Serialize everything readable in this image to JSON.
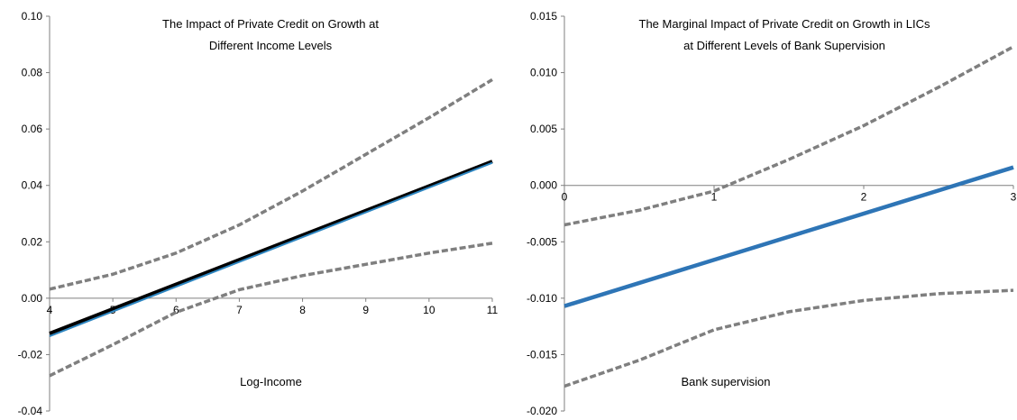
{
  "chart_data": [
    {
      "type": "line",
      "title_lines": [
        "The Impact of Private Credit on Growth at",
        "Different Income Levels"
      ],
      "xlabel": "Log-Income",
      "ylabel": "",
      "xlim": [
        4,
        11
      ],
      "ylim": [
        -0.04,
        0.1
      ],
      "x_ticks": [
        "4",
        "5",
        "6",
        "7",
        "8",
        "9",
        "10",
        "11"
      ],
      "y_ticks": [
        "0.10",
        "0.08",
        "0.06",
        "0.04",
        "0.02",
        "0.00",
        "-0.02",
        "-0.04"
      ],
      "grid": false,
      "series": [
        {
          "role": "upper-bound",
          "style": "dashed",
          "color": "#7f7f7f",
          "x": [
            4,
            5,
            6,
            7,
            8,
            9,
            10,
            11
          ],
          "y": [
            0.0032,
            0.0085,
            0.016,
            0.026,
            0.038,
            0.051,
            0.064,
            0.0775
          ]
        },
        {
          "role": "estimate-black",
          "style": "solid",
          "color": "#000000",
          "x": [
            4,
            11
          ],
          "y": [
            -0.0125,
            0.0485
          ]
        },
        {
          "role": "estimate-blue",
          "style": "solid",
          "color": "#2e86c1",
          "x": [
            4,
            11
          ],
          "y": [
            -0.0135,
            0.048
          ]
        },
        {
          "role": "lower-bound",
          "style": "dashed",
          "color": "#7f7f7f",
          "x": [
            4,
            5,
            6,
            7,
            8,
            9,
            10,
            11
          ],
          "y": [
            -0.0275,
            -0.0165,
            -0.005,
            0.003,
            0.008,
            0.012,
            0.016,
            0.0195
          ]
        }
      ]
    },
    {
      "type": "line",
      "title_lines": [
        "The Marginal Impact of Private Credit on Growth in LICs",
        "at Different Levels  of Bank Supervision"
      ],
      "xlabel": "Bank supervision",
      "ylabel": "",
      "xlim": [
        0,
        3
      ],
      "ylim": [
        -0.02,
        0.015
      ],
      "x_ticks": [
        "0",
        "1",
        "2",
        "3"
      ],
      "y_ticks": [
        "0.015",
        "0.010",
        "0.005",
        "0.000",
        "-0.005",
        "-0.010",
        "-0.015",
        "-0.020"
      ],
      "grid": false,
      "series": [
        {
          "role": "upper-bound",
          "style": "dashed",
          "color": "#7f7f7f",
          "x": [
            0,
            0.5,
            1,
            1.5,
            2,
            2.5,
            3
          ],
          "y": [
            -0.0035,
            -0.0022,
            -0.0005,
            0.0023,
            0.0053,
            0.0087,
            0.0123
          ]
        },
        {
          "role": "estimate",
          "style": "solid",
          "color": "#2e75b6",
          "x": [
            0,
            3
          ],
          "y": [
            -0.0107,
            0.0016
          ]
        },
        {
          "role": "lower-bound",
          "style": "dashed",
          "color": "#7f7f7f",
          "x": [
            0,
            0.5,
            1,
            1.5,
            2,
            2.5,
            3
          ],
          "y": [
            -0.0178,
            -0.0155,
            -0.0128,
            -0.0112,
            -0.0102,
            -0.0096,
            -0.0093
          ]
        }
      ]
    }
  ]
}
